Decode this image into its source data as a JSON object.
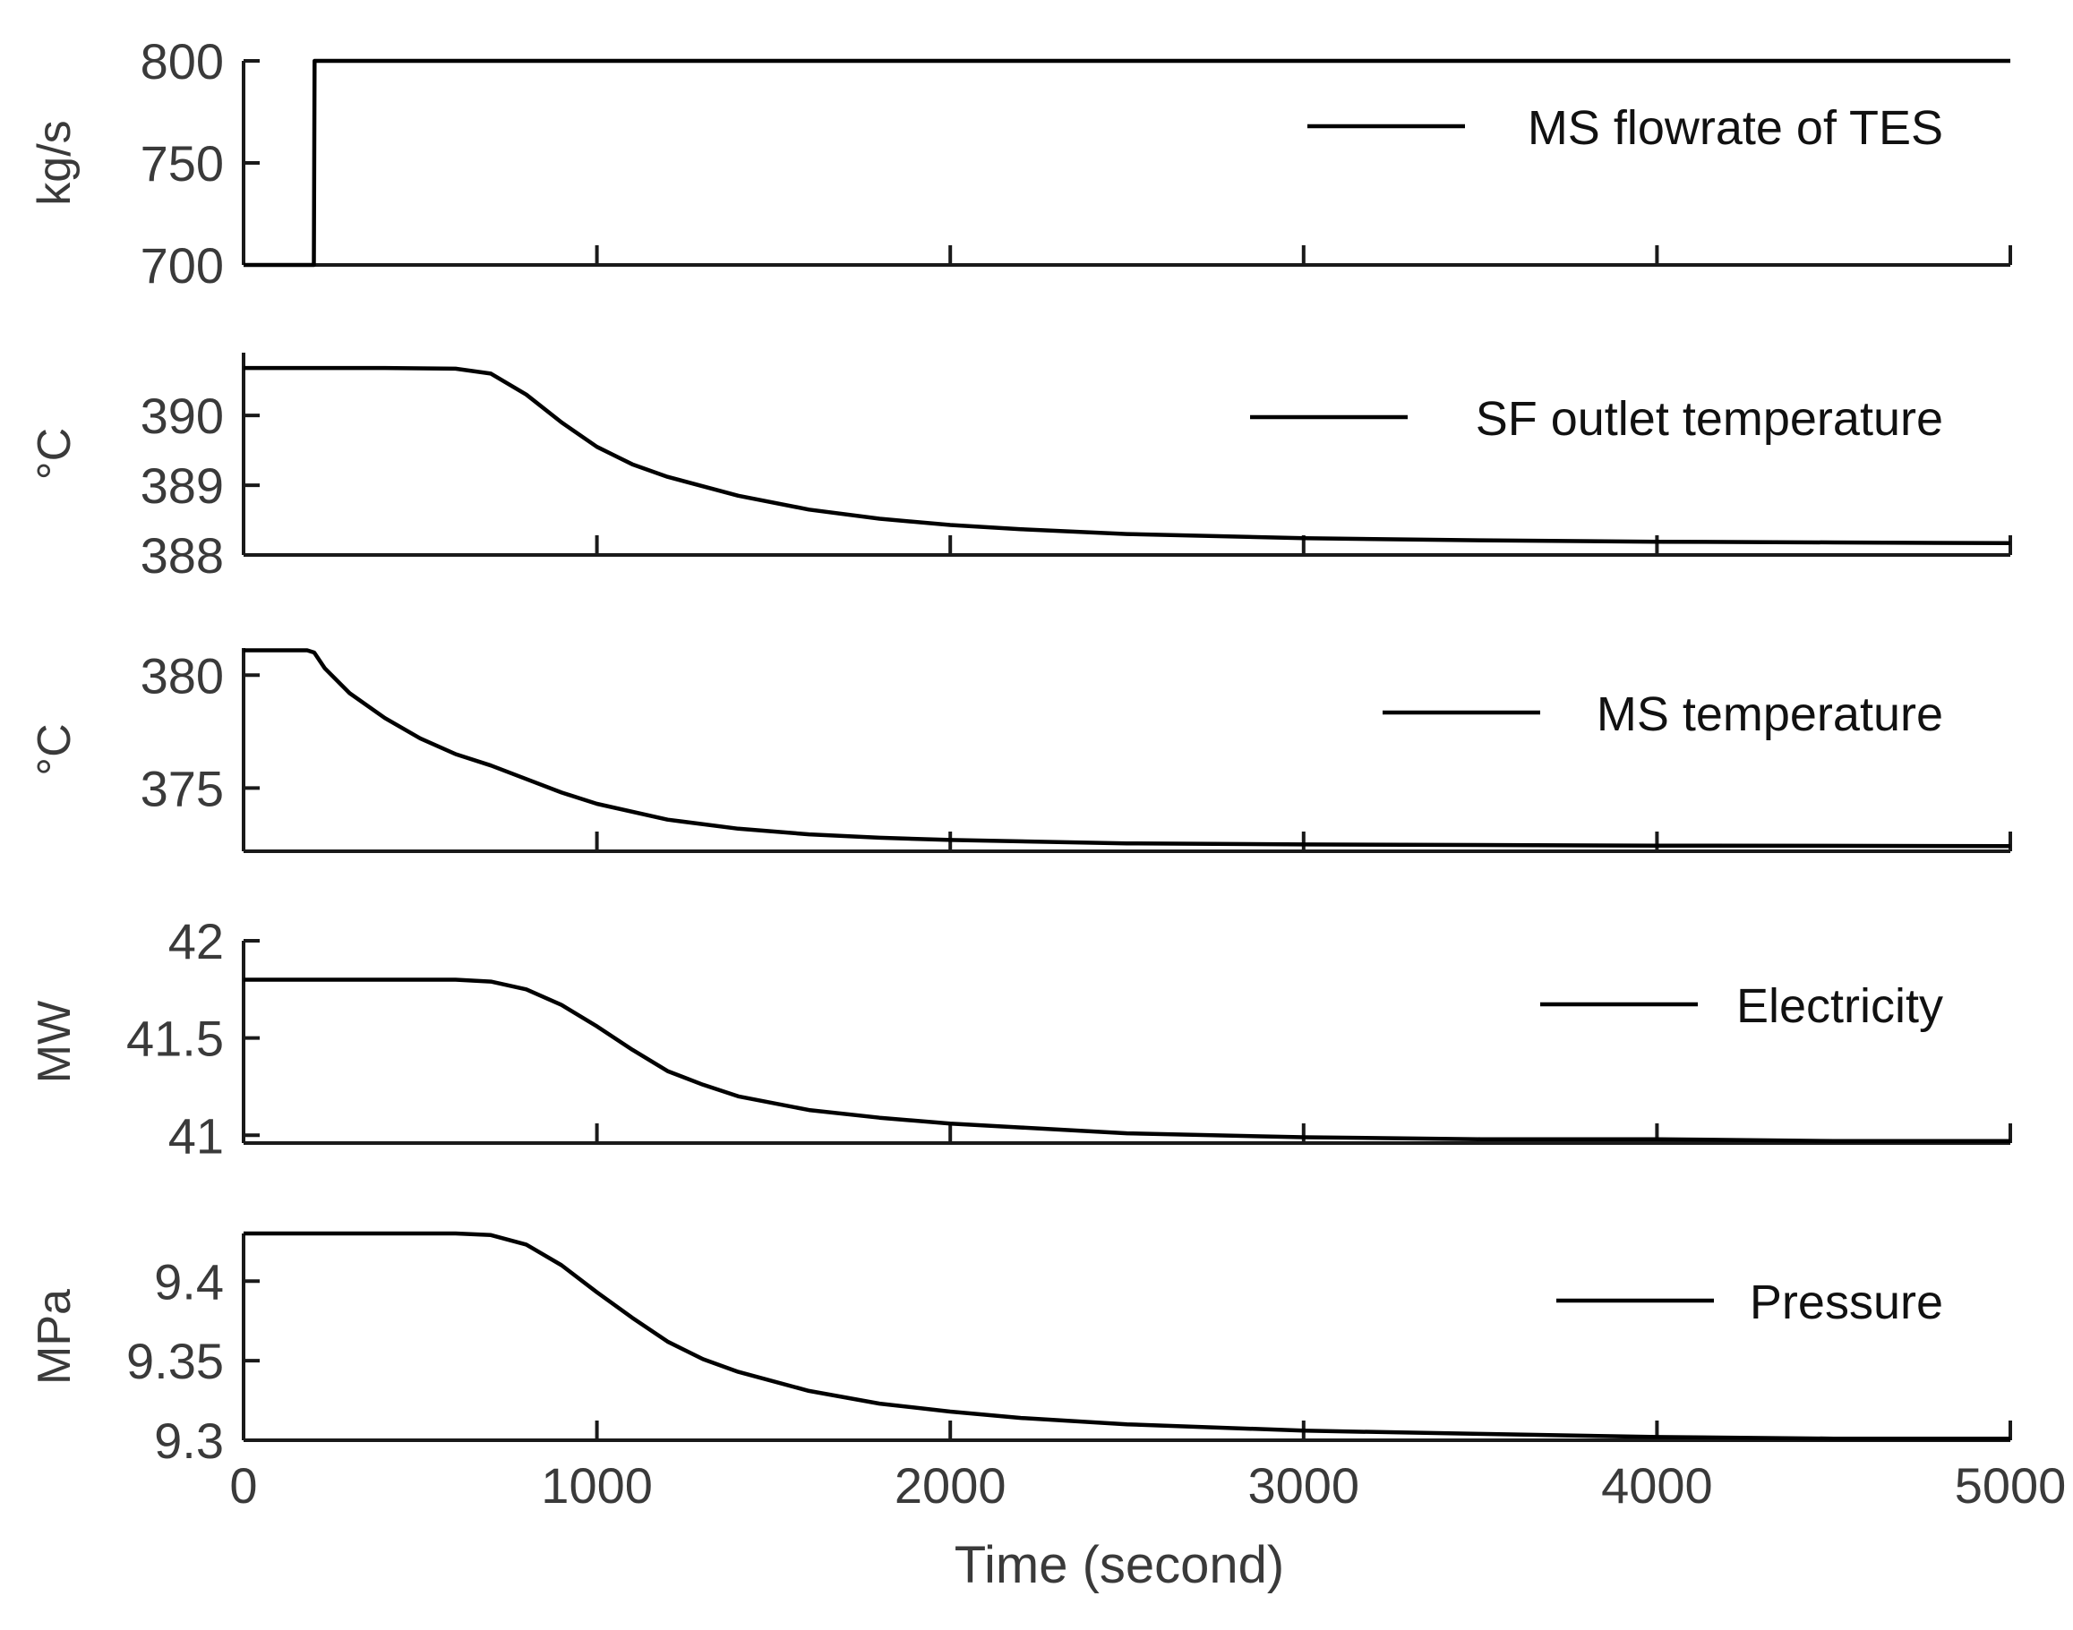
{
  "chart_data": [
    {
      "type": "line",
      "panel": 1,
      "ylabel": "kg/s",
      "ylim": [
        700,
        800
      ],
      "yticks": [
        "700",
        "750",
        "800"
      ],
      "xlim": [
        0,
        5000
      ],
      "series": [
        {
          "name": "MS flowrate of TES",
          "color": "#000000",
          "x": [
            0,
            199,
            201,
            5000
          ],
          "values": [
            700,
            700,
            800,
            800
          ]
        }
      ]
    },
    {
      "type": "line",
      "panel": 2,
      "ylabel": "°C",
      "ylim": [
        388,
        390.9
      ],
      "yticks": [
        "388",
        "389",
        "390"
      ],
      "xlim": [
        0,
        5000
      ],
      "series": [
        {
          "name": "SF outlet temperature",
          "color": "#000000",
          "x": [
            0,
            200,
            400,
            600,
            700,
            800,
            900,
            1000,
            1100,
            1200,
            1400,
            1600,
            1800,
            2000,
            2200,
            2500,
            3000,
            3500,
            4000,
            4500,
            5000
          ],
          "values": [
            390.68,
            390.68,
            390.68,
            390.67,
            390.6,
            390.3,
            389.9,
            389.55,
            389.3,
            389.12,
            388.85,
            388.65,
            388.52,
            388.43,
            388.37,
            388.3,
            388.24,
            388.21,
            388.19,
            388.18,
            388.17
          ]
        }
      ]
    },
    {
      "type": "line",
      "panel": 3,
      "ylabel": "°C",
      "ylim": [
        372.2,
        381.2
      ],
      "yticks": [
        "375",
        "380"
      ],
      "xlim": [
        0,
        5000
      ],
      "series": [
        {
          "name": "MS temperature",
          "color": "#000000",
          "x": [
            0,
            180,
            200,
            230,
            300,
            400,
            500,
            600,
            700,
            800,
            900,
            1000,
            1200,
            1400,
            1600,
            1800,
            2000,
            2500,
            3000,
            4000,
            5000
          ],
          "values": [
            381.1,
            381.1,
            381.0,
            380.3,
            379.2,
            378.1,
            377.2,
            376.5,
            376.0,
            375.4,
            374.8,
            374.3,
            373.6,
            373.2,
            372.95,
            372.8,
            372.7,
            372.55,
            372.5,
            372.45,
            372.43
          ]
        }
      ]
    },
    {
      "type": "line",
      "panel": 4,
      "ylabel": "MW",
      "ylim": [
        40.96,
        42.0
      ],
      "yticks": [
        "41",
        "41.5",
        "42"
      ],
      "xlim": [
        0,
        5000
      ],
      "series": [
        {
          "name": "Electricity",
          "color": "#000000",
          "x": [
            0,
            200,
            400,
            600,
            700,
            800,
            900,
            1000,
            1100,
            1200,
            1300,
            1400,
            1600,
            1800,
            2000,
            2200,
            2500,
            3000,
            3500,
            4000,
            4500,
            5000
          ],
          "values": [
            41.8,
            41.8,
            41.8,
            41.8,
            41.79,
            41.75,
            41.67,
            41.56,
            41.44,
            41.33,
            41.26,
            41.2,
            41.13,
            41.09,
            41.06,
            41.04,
            41.01,
            40.99,
            40.98,
            40.98,
            40.97,
            40.97
          ]
        }
      ]
    },
    {
      "type": "line",
      "panel": 5,
      "ylabel": "MPa",
      "ylim": [
        9.3,
        9.43
      ],
      "yticks": [
        "9.3",
        "9.35",
        "9.4"
      ],
      "xlim": [
        0,
        5000
      ],
      "xticks": [
        "0",
        "1000",
        "2000",
        "3000",
        "4000",
        "5000"
      ],
      "xlabel": "Time (second)",
      "series": [
        {
          "name": "Pressure",
          "color": "#000000",
          "x": [
            0,
            200,
            400,
            600,
            700,
            800,
            900,
            1000,
            1100,
            1200,
            1300,
            1400,
            1600,
            1800,
            2000,
            2200,
            2500,
            3000,
            3500,
            4000,
            4500,
            5000
          ],
          "values": [
            9.43,
            9.43,
            9.43,
            9.43,
            9.429,
            9.423,
            9.41,
            9.393,
            9.377,
            9.362,
            9.351,
            9.343,
            9.331,
            9.323,
            9.318,
            9.314,
            9.31,
            9.306,
            9.304,
            9.302,
            9.301,
            9.301
          ]
        }
      ]
    }
  ]
}
